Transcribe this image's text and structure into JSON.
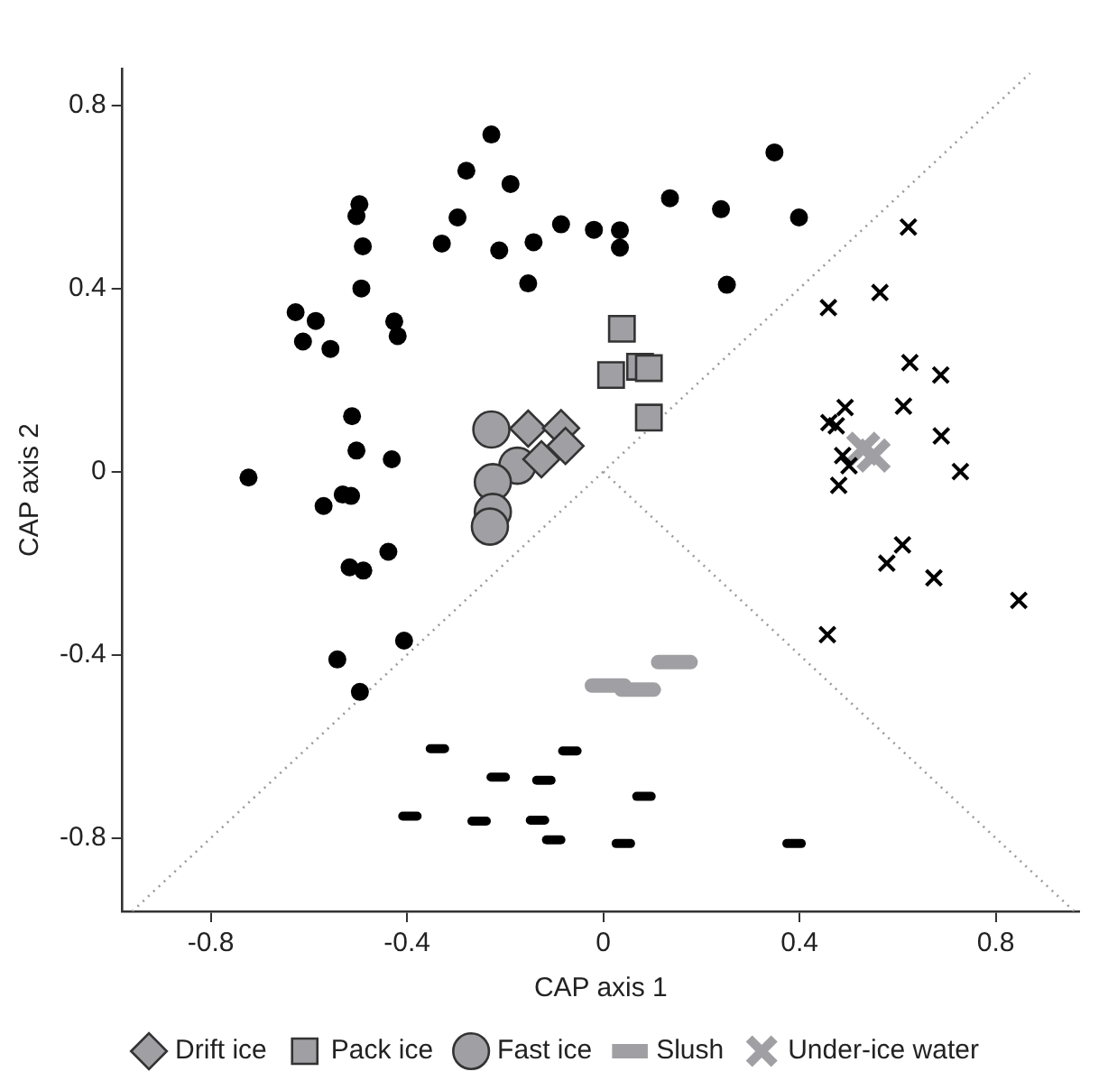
{
  "chart_data": {
    "type": "scatter",
    "xlabel": "CAP axis 1",
    "ylabel": "CAP axis 2",
    "xlim": [
      -0.98,
      0.97
    ],
    "ylim": [
      -0.96,
      0.88
    ],
    "xticks": [
      -0.8,
      -0.4,
      0,
      0.4,
      0.8
    ],
    "yticks": [
      -0.8,
      -0.4,
      0,
      0.4,
      0.8
    ],
    "legend": "bottom",
    "grid": false,
    "series": [
      {
        "color": "#000000",
        "marker": "circle",
        "x": [
          -0.228,
          -0.279,
          -0.189,
          -0.497,
          -0.503,
          -0.49,
          -0.297,
          -0.329,
          -0.212,
          -0.142,
          -0.086,
          -0.019,
          0.034,
          0.034,
          -0.153,
          -0.493,
          -0.627,
          -0.586,
          -0.612,
          -0.556,
          -0.426,
          -0.419,
          -0.512,
          -0.503,
          -0.431,
          -0.723,
          0.349,
          0.136,
          0.24,
          0.399,
          0.252,
          -0.57,
          -0.531,
          -0.514,
          -0.438,
          -0.517,
          -0.489,
          -0.406,
          -0.542,
          -0.496
        ],
        "values": [
          0.736,
          0.657,
          0.628,
          0.584,
          0.558,
          0.492,
          0.555,
          0.498,
          0.483,
          0.501,
          0.54,
          0.528,
          0.527,
          0.489,
          0.411,
          0.4,
          0.348,
          0.329,
          0.284,
          0.268,
          0.328,
          0.296,
          0.121,
          0.046,
          0.027,
          -0.013,
          0.697,
          0.597,
          0.573,
          0.555,
          0.408,
          -0.075,
          -0.05,
          -0.053,
          -0.175,
          -0.209,
          -0.216,
          -0.369,
          -0.41,
          -0.481
        ]
      },
      {
        "color": "#000000",
        "x": [
          -0.338,
          -0.068,
          -0.214,
          -0.121,
          -0.394,
          -0.253,
          -0.134,
          -0.101,
          0.083,
          0.041,
          0.389
        ],
        "values": [
          -0.605,
          -0.61,
          -0.667,
          -0.674,
          -0.752,
          -0.763,
          -0.761,
          -0.804,
          -0.709,
          -0.812,
          -0.812
        ]
      },
      {
        "color": "#000000",
        "marker": "cross",
        "x": [
          0.622,
          0.564,
          0.459,
          0.625,
          0.688,
          0.493,
          0.612,
          0.46,
          0.475,
          0.689,
          0.488,
          0.501,
          0.728,
          0.48,
          0.61,
          0.578,
          0.674,
          0.847,
          0.457
        ],
        "values": [
          0.534,
          0.391,
          0.358,
          0.238,
          0.211,
          0.14,
          0.143,
          0.107,
          0.1,
          0.078,
          0.035,
          0.013,
          0,
          -0.03,
          -0.16,
          -0.2,
          -0.232,
          -0.281,
          -0.356
        ]
      },
      {
        "name": "Drift ice",
        "color": "#a0a0a4",
        "marker": "diamond",
        "x": [
          -0.153,
          -0.086,
          -0.077,
          -0.126
        ],
        "values": [
          0.094,
          0.095,
          0.056,
          0.027
        ]
      },
      {
        "name": "Pack ice",
        "color": "#a0a0a4",
        "marker": "square",
        "x": [
          0.038,
          0.016,
          0.075,
          0.093,
          0.093
        ],
        "values": [
          0.312,
          0.211,
          0.229,
          0.226,
          0.118
        ]
      },
      {
        "name": "Fast ice",
        "color": "#a0a0a4",
        "marker": "circle",
        "x": [
          -0.228,
          -0.175,
          -0.225,
          -0.225,
          -0.231
        ],
        "values": [
          0.092,
          0.013,
          -0.023,
          -0.088,
          -0.12
        ]
      },
      {
        "name": "Slush",
        "color": "#a0a0a4",
        "x": [
          0.01,
          0.07,
          0.145
        ],
        "values": [
          -0.467,
          -0.476,
          -0.416
        ]
      },
      {
        "name": "Under-ice water",
        "color": "#a0a0a4",
        "marker": "cross",
        "x": [
          0.53,
          0.551
        ],
        "values": [
          0.05,
          0.035
        ]
      },
      {
        "type": "line",
        "color": "#999999",
        "marker": "none",
        "line_style": "dotted",
        "x": [
          -0.96,
          0.87
        ],
        "values": [
          -0.96,
          0.87
        ]
      },
      {
        "type": "line",
        "color": "#999999",
        "marker": "none",
        "line_style": "dotted",
        "x": [
          0,
          0.96
        ],
        "values": [
          0,
          -0.96
        ]
      }
    ]
  }
}
